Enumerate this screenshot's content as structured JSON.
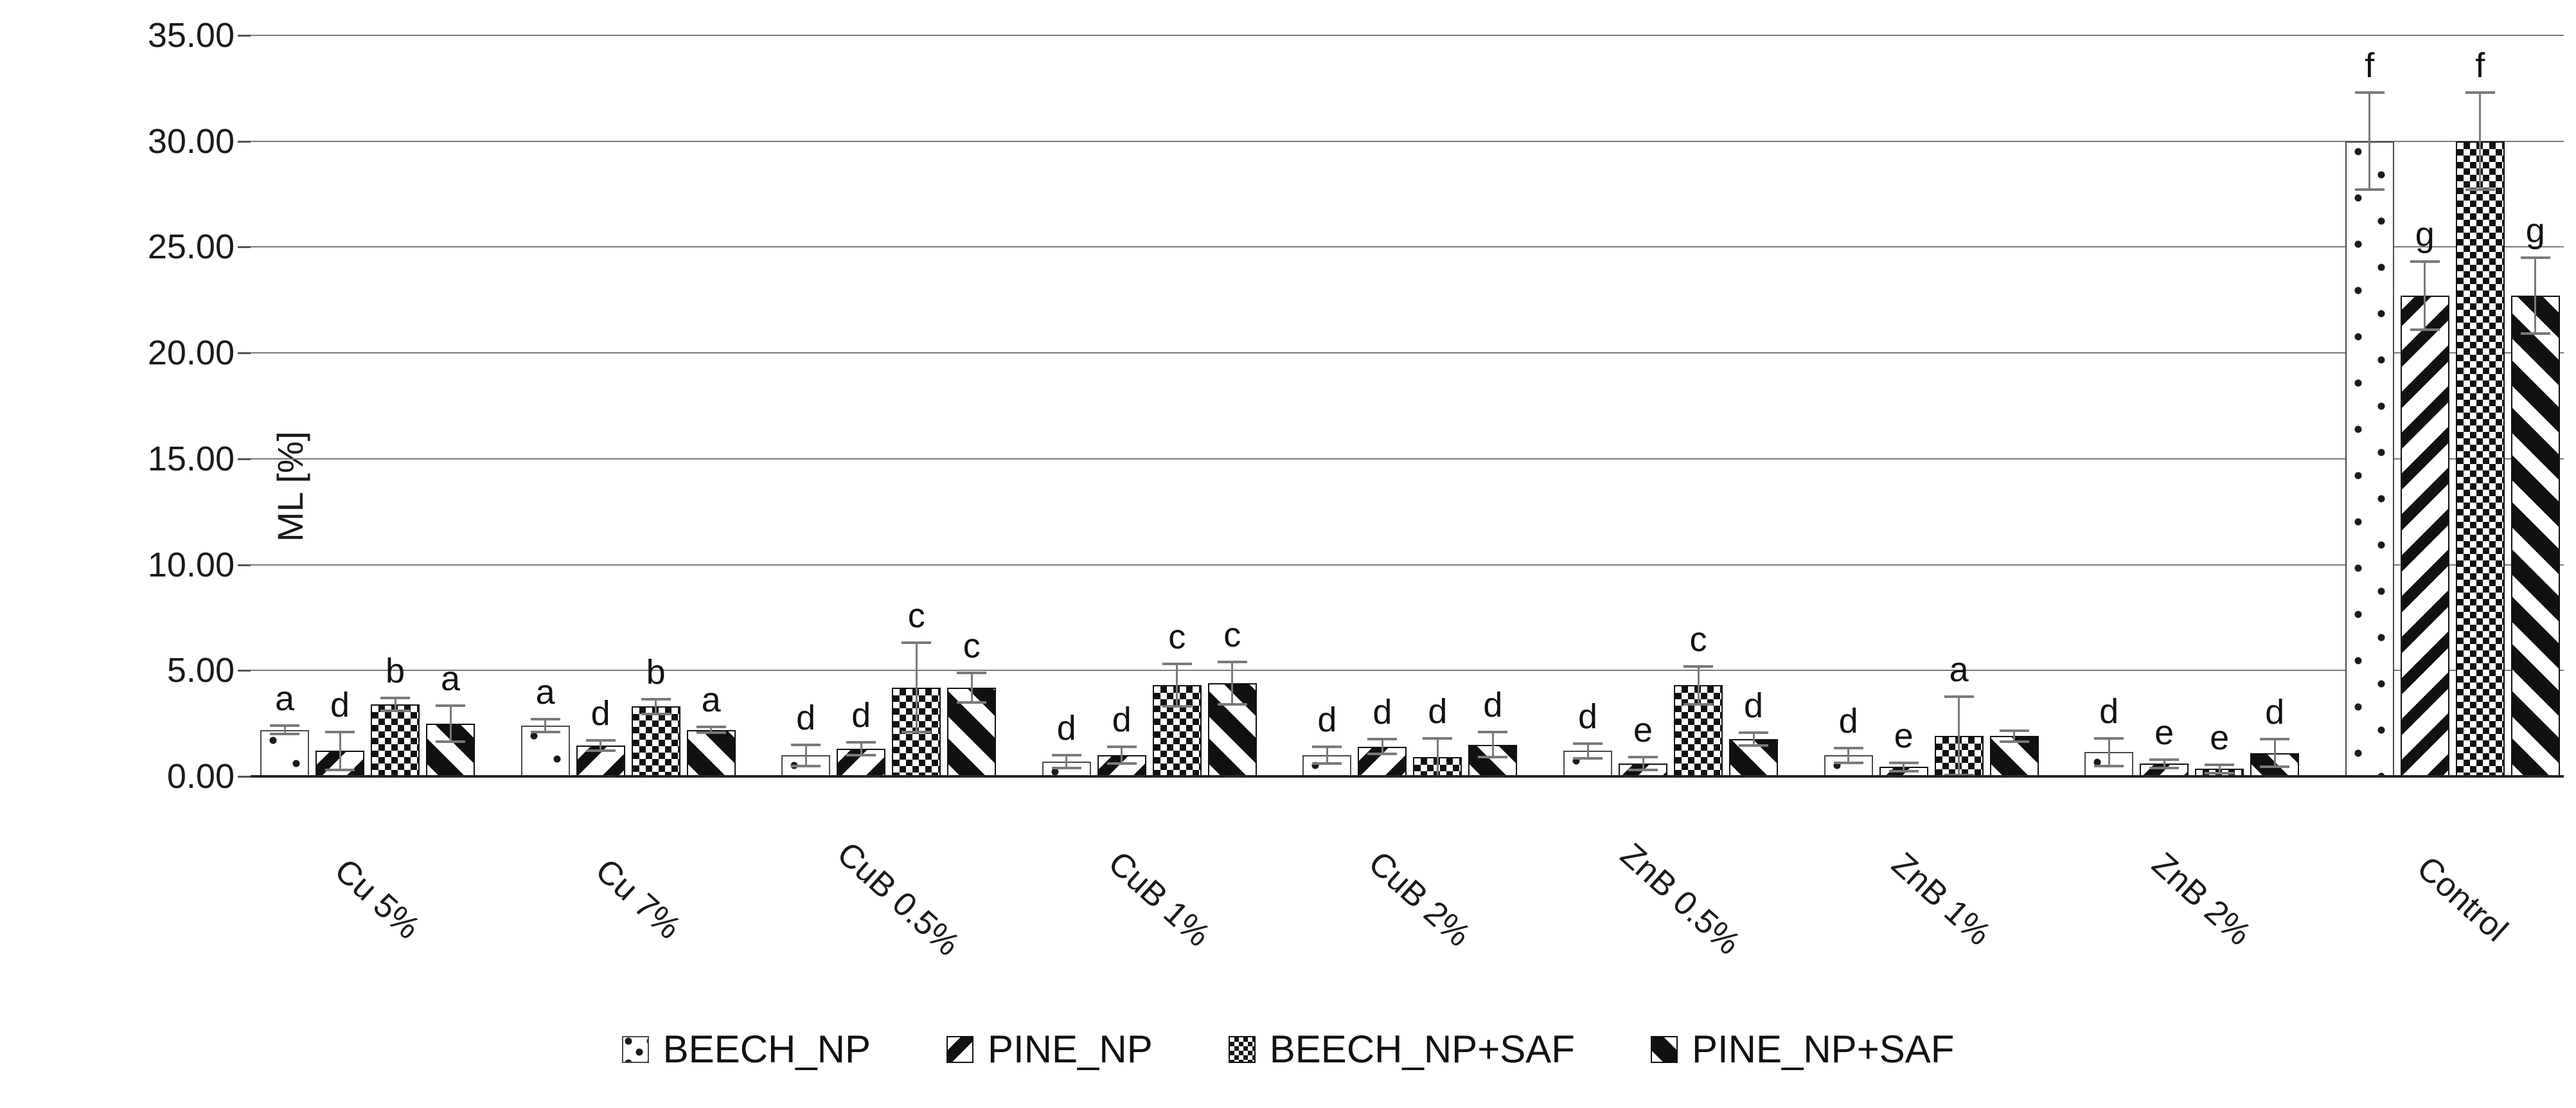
{
  "chart_data": {
    "type": "bar",
    "title": "",
    "ylabel": "ML [%]",
    "xlabel": "",
    "ylim": [
      0,
      35
    ],
    "grid": true,
    "legend_position": "bottom",
    "yticks": [
      "0.00",
      "5.00",
      "10.00",
      "15.00",
      "20.00",
      "25.00",
      "30.00",
      "35.00"
    ],
    "categories": [
      "Cu 5%",
      "Cu 7%",
      "CuB 0.5%",
      "CuB 1%",
      "CuB 2%",
      "ZnB 0.5%",
      "ZnB 1%",
      "ZnB 2%",
      "Control"
    ],
    "series": [
      {
        "name": "BEECH_NP",
        "pattern": "dots",
        "values": [
          2.2,
          2.4,
          1.0,
          0.7,
          1.0,
          1.2,
          1.0,
          1.15,
          30.0
        ],
        "err_up": [
          0.2,
          0.3,
          0.5,
          0.3,
          0.4,
          0.35,
          0.35,
          0.65,
          2.3
        ],
        "letters": [
          "a",
          "a",
          "d",
          "d",
          "d",
          "d",
          "d",
          "d",
          "f"
        ]
      },
      {
        "name": "PINE_NP",
        "pattern": "diag-up",
        "values": [
          1.2,
          1.45,
          1.3,
          1.0,
          1.4,
          0.6,
          0.45,
          0.6,
          22.7
        ],
        "err_up": [
          0.9,
          0.25,
          0.3,
          0.4,
          0.35,
          0.3,
          0.2,
          0.2,
          1.6
        ],
        "letters": [
          "d",
          "d",
          "d",
          "d",
          "d",
          "e",
          "e",
          "e",
          "g"
        ]
      },
      {
        "name": "BEECH_NP+SAF",
        "pattern": "checker",
        "values": [
          3.4,
          3.3,
          4.2,
          4.3,
          0.9,
          4.3,
          1.9,
          0.35,
          30.0
        ],
        "err_up": [
          0.3,
          0.35,
          2.1,
          1.0,
          0.9,
          0.9,
          1.85,
          0.2,
          2.3
        ],
        "letters": [
          "b",
          "b",
          "c",
          "c",
          "d",
          "c",
          "a",
          "e",
          "f"
        ]
      },
      {
        "name": "PINE_NP+SAF",
        "pattern": "diag-down",
        "values": [
          2.5,
          2.2,
          4.2,
          4.4,
          1.5,
          1.75,
          1.9,
          1.1,
          22.7
        ],
        "err_up": [
          0.85,
          0.15,
          0.7,
          1.0,
          0.6,
          0.3,
          0.25,
          0.65,
          1.8
        ],
        "letters": [
          "a",
          "a",
          "c",
          "c",
          "d",
          "d",
          "",
          "d",
          "g"
        ]
      }
    ]
  },
  "colors": {
    "bar_fill": "#ffffff",
    "bar_pattern": "#111111",
    "gridline": "#7a7a7a",
    "axis": "#262626",
    "error_bar": "#7a7a7a",
    "text": "#1a1a1a"
  }
}
